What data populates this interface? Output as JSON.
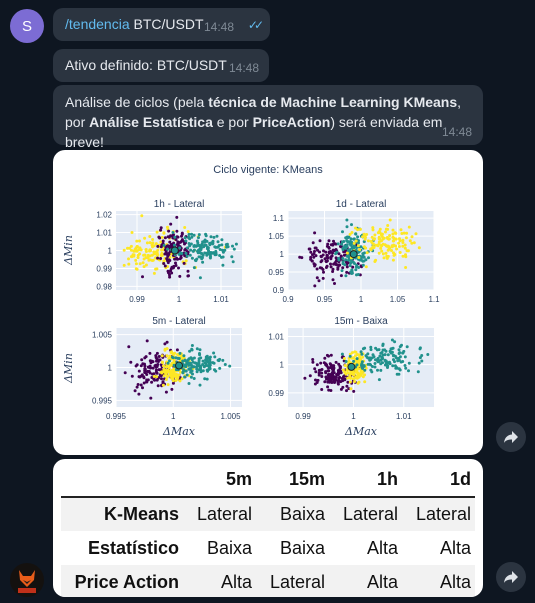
{
  "chat": {
    "sender_initial": "S",
    "messages": [
      {
        "command": "/tendencia",
        "text": " BTC/USDT",
        "time": "14:48"
      },
      {
        "text": "Ativo definido: BTC/USDT",
        "time": "14:48"
      },
      {
        "parts": [
          "Análise de ciclos (pela ",
          "técnica de Machine Learning KMeans",
          ", por ",
          "Análise Estatística",
          " e por ",
          "PriceAction",
          ") será enviada em breve!"
        ],
        "time": "14:48"
      }
    ]
  },
  "colors": {
    "purple": "#440154",
    "teal": "#21918c",
    "yellow": "#fde725",
    "plot_bg": "#e5ecf6"
  },
  "chart_data": {
    "type": "scatter",
    "title": "Ciclo vigente: KMeans",
    "xlabel": "ΔMax",
    "ylabel": "ΔMin",
    "subplots": [
      {
        "title": "1h - Lateral",
        "xticks": [
          "0.99",
          "1",
          "1.01"
        ],
        "yticks": [
          "1.02",
          "1.01",
          "1",
          "0.99",
          "0.98"
        ],
        "xlim": [
          0.985,
          1.015
        ],
        "ylim": [
          0.978,
          1.022
        ],
        "clusters": [
          {
            "name": "yellow",
            "center": [
              0.9935,
              0.9995
            ],
            "spread": [
              0.0045,
              0.006
            ]
          },
          {
            "name": "purple",
            "center": [
              0.999,
              1.0
            ],
            "spread": [
              0.0018,
              0.006
            ]
          },
          {
            "name": "teal",
            "center": [
              1.006,
              1.001
            ],
            "spread": [
              0.004,
              0.004
            ]
          }
        ],
        "current": [
          0.999,
          1.0
        ]
      },
      {
        "title": "1d - Lateral",
        "xticks": [
          "0.9",
          "0.95",
          "1",
          "1.05",
          "1.1"
        ],
        "yticks": [
          "1.1",
          "1.05",
          "1",
          "0.95",
          "0.9"
        ],
        "xlim": [
          0.9,
          1.1
        ],
        "ylim": [
          0.9,
          1.12
        ],
        "clusters": [
          {
            "name": "purple",
            "center": [
              0.96,
              0.99
            ],
            "spread": [
              0.018,
              0.03
            ]
          },
          {
            "name": "teal",
            "center": [
              0.99,
              1.01
            ],
            "spread": [
              0.01,
              0.03
            ]
          },
          {
            "name": "yellow",
            "center": [
              1.03,
              1.03
            ],
            "spread": [
              0.02,
              0.025
            ]
          }
        ],
        "current": [
          0.99,
          1.0
        ]
      },
      {
        "title": "5m - Lateral",
        "xticks": [
          "0.995",
          "1",
          "1.005"
        ],
        "yticks": [
          "1.005",
          "1",
          "0.995"
        ],
        "xlim": [
          0.995,
          1.006
        ],
        "ylim": [
          0.994,
          1.006
        ],
        "clusters": [
          {
            "name": "purple",
            "center": [
              0.9985,
              0.9995
            ],
            "spread": [
              0.0012,
              0.0015
            ]
          },
          {
            "name": "yellow",
            "center": [
              1.0001,
              1.0
            ],
            "spread": [
              0.0006,
              0.0012
            ]
          },
          {
            "name": "teal",
            "center": [
              1.002,
              1.0005
            ],
            "spread": [
              0.001,
              0.001
            ]
          }
        ],
        "current": [
          1.0005,
          1.0003
        ]
      },
      {
        "title": "15m - Baixa",
        "xticks": [
          "0.99",
          "1",
          "1.01"
        ],
        "yticks": [
          "1.01",
          "1",
          "0.99"
        ],
        "xlim": [
          0.987,
          1.016
        ],
        "ylim": [
          0.985,
          1.013
        ],
        "clusters": [
          {
            "name": "purple",
            "center": [
              0.996,
              0.997
            ],
            "spread": [
              0.0022,
              0.003
            ]
          },
          {
            "name": "yellow",
            "center": [
              1.0005,
              0.999
            ],
            "spread": [
              0.0012,
              0.0025
            ]
          },
          {
            "name": "teal",
            "center": [
              1.007,
              1.002
            ],
            "spread": [
              0.0035,
              0.0025
            ]
          }
        ],
        "current": [
          0.9996,
          0.9992
        ]
      }
    ]
  },
  "table": {
    "columns": [
      "",
      "5m",
      "15m",
      "1h",
      "1d"
    ],
    "rows": [
      {
        "label": "K-Means",
        "values": [
          "Lateral",
          "Baixa",
          "Lateral",
          "Lateral"
        ]
      },
      {
        "label": "Estatístico",
        "values": [
          "Baixa",
          "Baixa",
          "Alta",
          "Alta"
        ]
      },
      {
        "label": "Price Action",
        "values": [
          "Alta",
          "Lateral",
          "Alta",
          "Alta"
        ]
      }
    ]
  }
}
